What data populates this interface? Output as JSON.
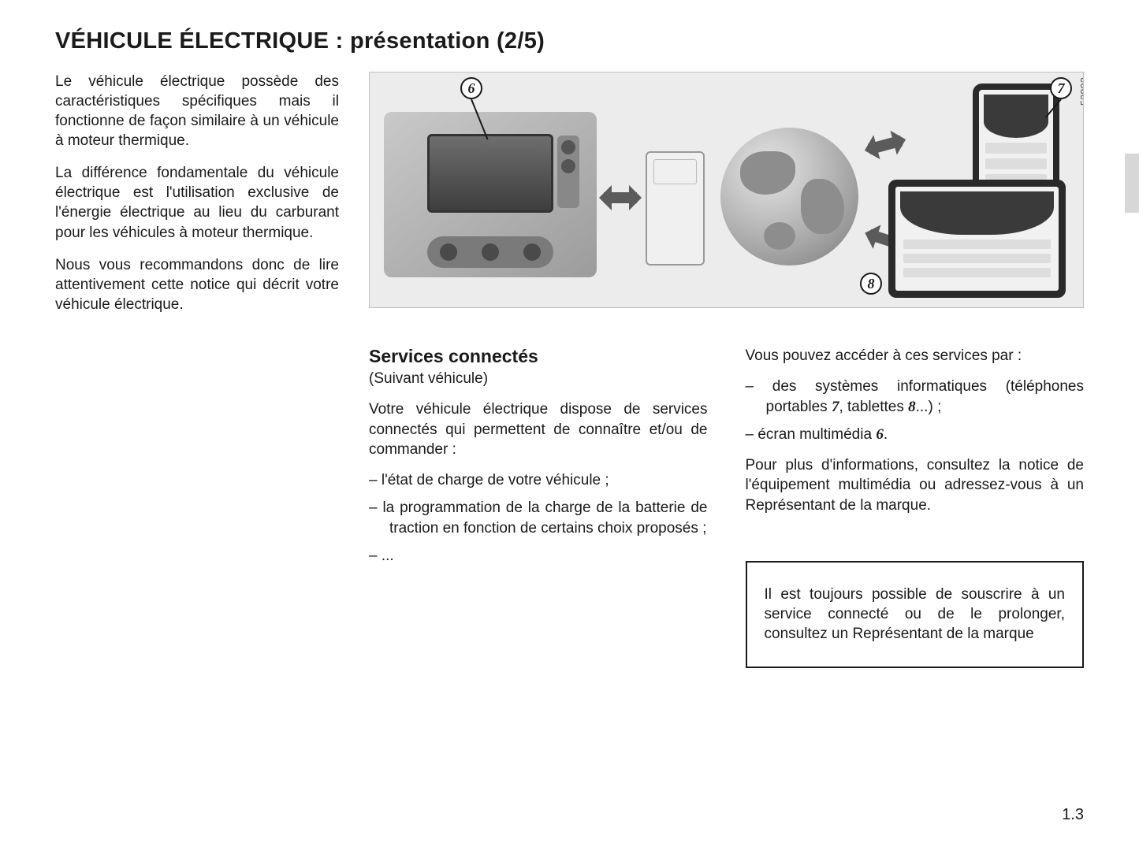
{
  "title_main": "VÉHICULE ÉLECTRIQUE : présentation ",
  "title_part": "(2/5)",
  "intro": {
    "p1": "Le véhicule électrique possède des caractéristiques spécifiques mais il fonctionne de façon similaire à un véhicule à moteur thermique.",
    "p2": "La différence fondamentale du véhicule électrique est l'utilisation exclusive de l'énergie électrique au lieu du carburant pour les véhicules à moteur thermique.",
    "p3": "Nous vous recommandons donc de lire attentivement cette notice qui décrit votre véhicule électrique."
  },
  "figure": {
    "serial": "53892",
    "callouts": {
      "c6": "6",
      "c7": "7",
      "c8": "8"
    },
    "elements": [
      "dashboard-screen",
      "server",
      "globe",
      "smartphone",
      "tablet",
      "bi-arrow"
    ]
  },
  "services": {
    "heading": "Services connectés",
    "sub": "(Suivant véhicule)",
    "intro": "Votre véhicule électrique dispose de services connectés qui permettent de connaître et/ou de commander :",
    "items": [
      "l'état de charge de votre véhicule ;",
      "la programmation de la charge de la batterie de traction en fonction de certains choix proposés ;",
      "..."
    ]
  },
  "access": {
    "intro": "Vous pouvez accéder à ces services par :",
    "items_html": [
      "des systèmes informatiques (téléphones portables <span class=\"itnum\">7</span>, tablettes <span class=\"itnum\">8</span>...) ;",
      "écran multimédia <span class=\"itnum\">6</span>."
    ],
    "more": "Pour plus d'informations, consultez la notice de l'équipement multimédia ou adressez-vous à un Représentant de la marque."
  },
  "notebox": "Il est toujours possible de souscrire à un service connecté ou de le prolonger, consultez un Représentant de la marque",
  "page_number": "1.3",
  "colors": {
    "text": "#1a1a1a",
    "figure_bg": "#ececec",
    "tab": "#d7d7d7",
    "arrow": "#5b5b5b"
  }
}
